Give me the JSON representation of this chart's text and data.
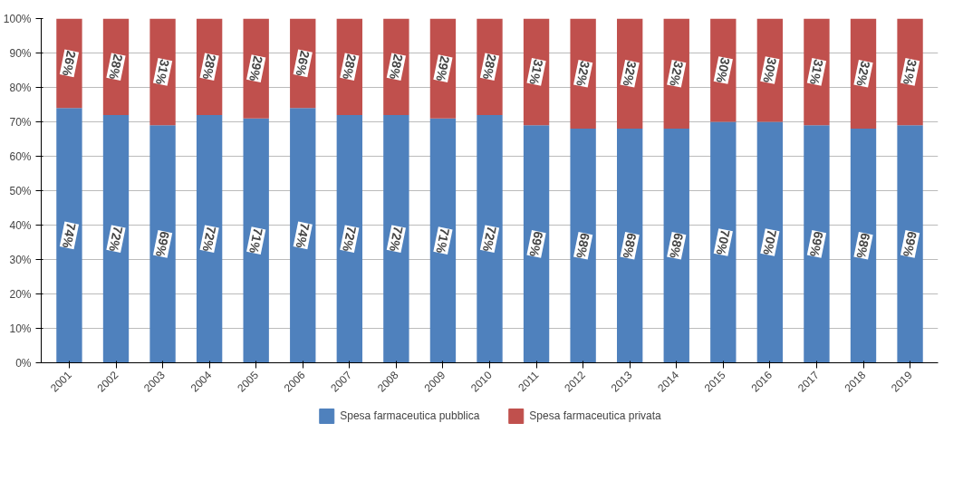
{
  "chart_data": {
    "type": "bar",
    "stacked": true,
    "categories": [
      "2001",
      "2002",
      "2003",
      "2004",
      "2005",
      "2006",
      "2007",
      "2008",
      "2009",
      "2010",
      "2011",
      "2012",
      "2013",
      "2014",
      "2015",
      "2016",
      "2017",
      "2018",
      "2019"
    ],
    "series": [
      {
        "name": "Spesa farmaceutica pubblica",
        "color": "#4f81bd",
        "values": [
          74,
          72,
          69,
          72,
          71,
          74,
          72,
          72,
          71,
          72,
          69,
          68,
          68,
          68,
          70,
          70,
          69,
          68,
          69
        ],
        "value_labels": [
          "74%",
          "72%",
          "69%",
          "72%",
          "71%",
          "74%",
          "72%",
          "72%",
          "71%",
          "72%",
          "69%",
          "68%",
          "68%",
          "68%",
          "70%",
          "70%",
          "69%",
          "68%",
          "69%"
        ]
      },
      {
        "name": "Spesa farmaceutica privata",
        "color": "#c0504d",
        "values": [
          26,
          28,
          31,
          28,
          29,
          26,
          28,
          28,
          29,
          28,
          31,
          32,
          32,
          32,
          30,
          30,
          31,
          32,
          31
        ],
        "value_labels": [
          "26%",
          "28%",
          "31%",
          "28%",
          "29%",
          "26%",
          "28%",
          "28%",
          "29%",
          "28%",
          "31%",
          "32%",
          "32%",
          "32%",
          "30%",
          "30%",
          "31%",
          "32%",
          "31%"
        ]
      }
    ],
    "ylim": [
      0,
      100
    ],
    "yticks": [
      {
        "value": 0,
        "label": "0%"
      },
      {
        "value": 10,
        "label": "10%"
      },
      {
        "value": 20,
        "label": "20%"
      },
      {
        "value": 30,
        "label": "30%"
      },
      {
        "value": 40,
        "label": "40%"
      },
      {
        "value": 50,
        "label": "50%"
      },
      {
        "value": 60,
        "label": "60%"
      },
      {
        "value": 70,
        "label": "70%"
      },
      {
        "value": 80,
        "label": "80%"
      },
      {
        "value": 90,
        "label": "90%"
      },
      {
        "value": 100,
        "label": "100%"
      }
    ],
    "grid": "y",
    "legend": "bottom"
  }
}
